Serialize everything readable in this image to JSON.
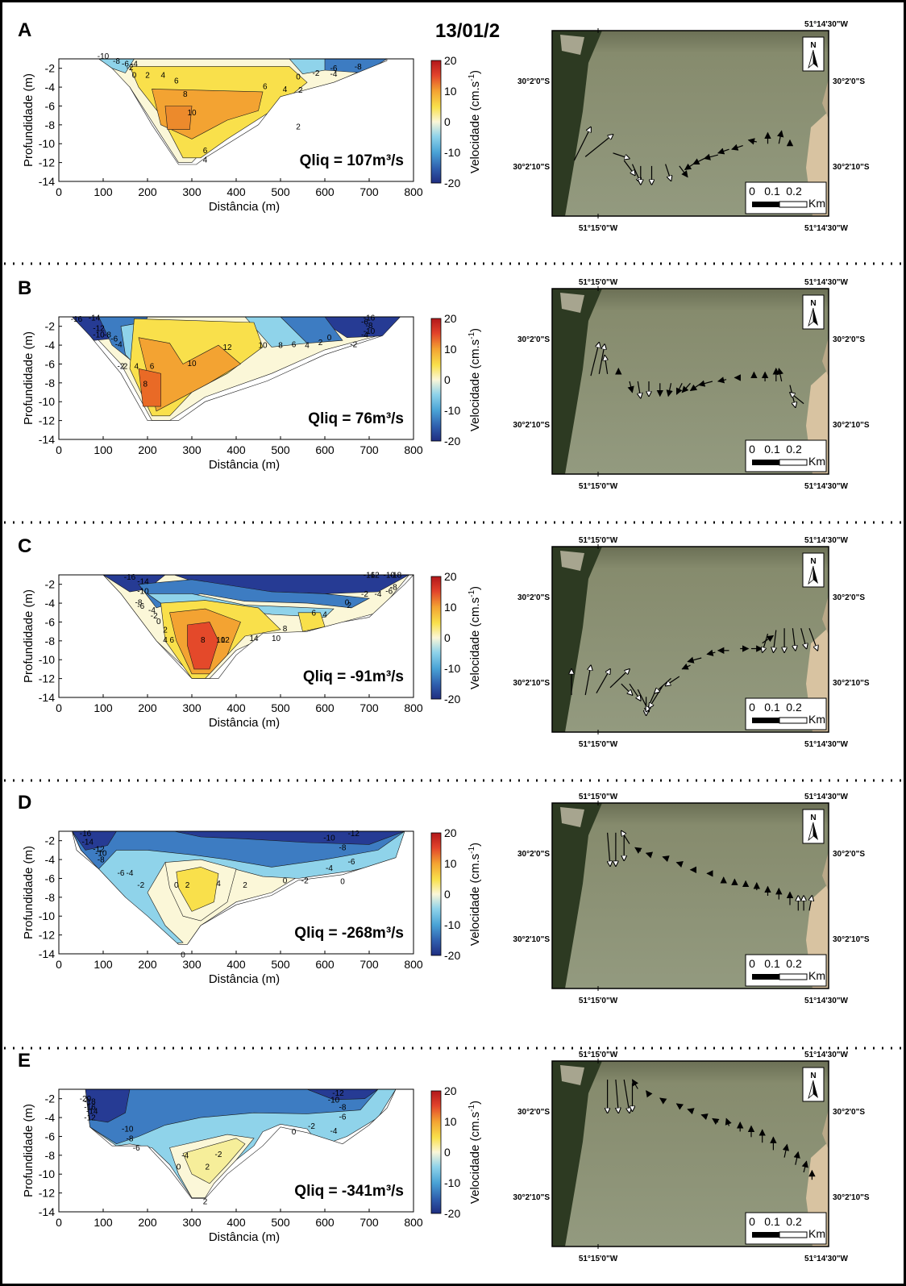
{
  "title": "13/01/2",
  "colorbar": {
    "label": "Velocidade (cm.s",
    "label_sup": "-1",
    "label_close": ")",
    "ticks": [
      "20",
      "10",
      "0",
      "-10",
      "-20"
    ]
  },
  "axes": {
    "xlabel": "Distância (m)",
    "ylabel": "Profundidade (m)",
    "xticks": [
      "0",
      "100",
      "200",
      "300",
      "400",
      "500",
      "600",
      "700",
      "800"
    ],
    "yticks": [
      "-2",
      "-4",
      "-6",
      "-8",
      "-10",
      "-12",
      "-14"
    ]
  },
  "map": {
    "lon_left": "51°15'0\"W",
    "lon_right": "51°14'30\"W",
    "lat_top": "30°2'0\"S",
    "lat_bottom": "30°2'10\"S",
    "north": "N",
    "scale_ticks": [
      "0",
      "0.1",
      "0.2"
    ],
    "scale_unit": "Km"
  },
  "colors": {
    "deep_blue": "#263b94",
    "blue": "#3d7cc2",
    "light_blue": "#8fd3ea",
    "pale": "#fbf7d8",
    "yellow": "#f9e04b",
    "orange": "#f3a332",
    "red": "#d7321f",
    "map_water": "#8f957a",
    "map_shore": "#2d3a22"
  },
  "chart_data": [
    {
      "type": "heatmap",
      "panel": "A",
      "qliq": "Qliq = 107m³/s",
      "xlim": [
        0,
        800
      ],
      "ylim": [
        -14,
        -1
      ],
      "clim": [
        -20,
        20
      ],
      "contour_labels": [
        "-10",
        "-8",
        "-6",
        "-4",
        "-2",
        "0",
        "2",
        "4",
        "6",
        "8",
        "10",
        "6",
        "4",
        "2",
        "0",
        "-2",
        "-4",
        "-6",
        "-8",
        "2",
        "6",
        "4"
      ]
    },
    {
      "type": "heatmap",
      "panel": "B",
      "qliq": "Qliq = 76m³/s",
      "xlim": [
        0,
        800
      ],
      "ylim": [
        -14,
        -1
      ],
      "clim": [
        -20,
        20
      ],
      "contour_labels": [
        "-16",
        "-14",
        "-12",
        "-10",
        "-8",
        "-6",
        "-4",
        "-2",
        "2",
        "4",
        "6",
        "8",
        "10",
        "12",
        "10",
        "8",
        "6",
        "4",
        "2",
        "0",
        "-2",
        "-4",
        "-6",
        "-8",
        "-10",
        "-16"
      ]
    },
    {
      "type": "heatmap",
      "panel": "C",
      "qliq": "Qliq = -91m³/s",
      "xlim": [
        0,
        800
      ],
      "ylim": [
        -14,
        -1
      ],
      "clim": [
        -20,
        20
      ],
      "contour_labels": [
        "-16",
        "-14",
        "-10",
        "-8",
        "-6",
        "-4",
        "-2",
        "0",
        "2",
        "4",
        "6",
        "8",
        "10",
        "12",
        "14",
        "10",
        "8",
        "6",
        "4",
        "2",
        "0",
        "-2",
        "-4",
        "-6",
        "-8",
        "-10",
        "-12",
        "-16",
        "-18"
      ]
    },
    {
      "type": "heatmap",
      "panel": "D",
      "qliq": "Qliq = -268m³/s",
      "xlim": [
        0,
        800
      ],
      "ylim": [
        -14,
        -1
      ],
      "clim": [
        -20,
        20
      ],
      "contour_labels": [
        "-16",
        "-14",
        "-12",
        "-10",
        "-8",
        "-6",
        "-4",
        "-2",
        "0",
        "2",
        "4",
        "2",
        "0",
        "-2",
        "-4",
        "-6",
        "-8",
        "-10",
        "-12",
        "0",
        "0"
      ]
    },
    {
      "type": "heatmap",
      "panel": "E",
      "qliq": "Qliq = -341m³/s",
      "xlim": [
        0,
        800
      ],
      "ylim": [
        -14,
        -1
      ],
      "clim": [
        -20,
        20
      ],
      "contour_labels": [
        "-20",
        "-18",
        "-16",
        "-14",
        "-12",
        "-10",
        "-8",
        "-6",
        "-4",
        "-2",
        "0",
        "2",
        "0",
        "-2",
        "-4",
        "-6",
        "-8",
        "-10",
        "-12",
        "2"
      ]
    }
  ]
}
